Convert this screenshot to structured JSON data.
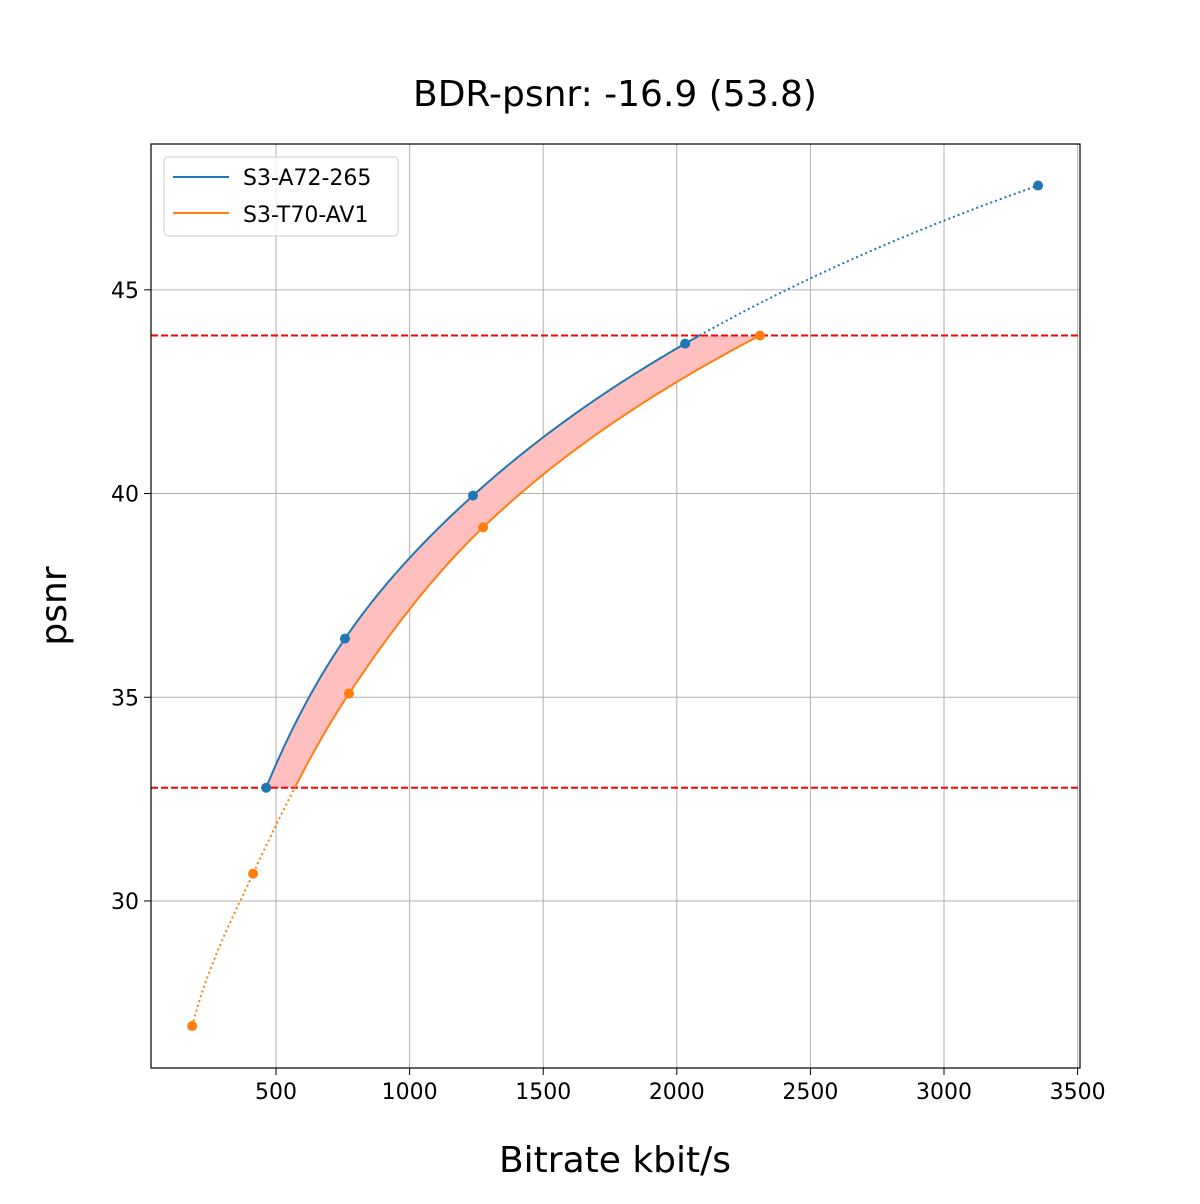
{
  "chart_data": {
    "type": "line",
    "title": "BDR-psnr: -16.9 (53.8)",
    "xlabel": "Bitrate kbit/s",
    "ylabel": "psnr",
    "xlim": [
      32,
      3509
    ],
    "ylim": [
      25.9,
      48.58
    ],
    "xticks": [
      500,
      1000,
      1500,
      2000,
      2500,
      3000,
      3500
    ],
    "yticks": [
      30,
      35,
      40,
      45
    ],
    "grid": true,
    "legend_position": "top-left",
    "series": [
      {
        "name": "S3-A72-265",
        "color": "#1f77b4",
        "x": [
          463,
          758,
          1237,
          2031,
          3352
        ],
        "y": [
          32.78,
          36.44,
          39.95,
          43.68,
          47.56
        ]
      },
      {
        "name": "S3-T70-AV1",
        "color": "#ff7f0e",
        "x": [
          186,
          414,
          773,
          1275,
          2311
        ],
        "y": [
          26.93,
          30.67,
          35.09,
          39.17,
          43.88
        ]
      }
    ],
    "reference_lines": {
      "y": [
        43.88,
        32.78
      ],
      "color": "#ff0000",
      "style": "dashed"
    },
    "fill_between": {
      "color": "#ffbfbf",
      "psnr_range": [
        32.78,
        43.88
      ]
    }
  }
}
